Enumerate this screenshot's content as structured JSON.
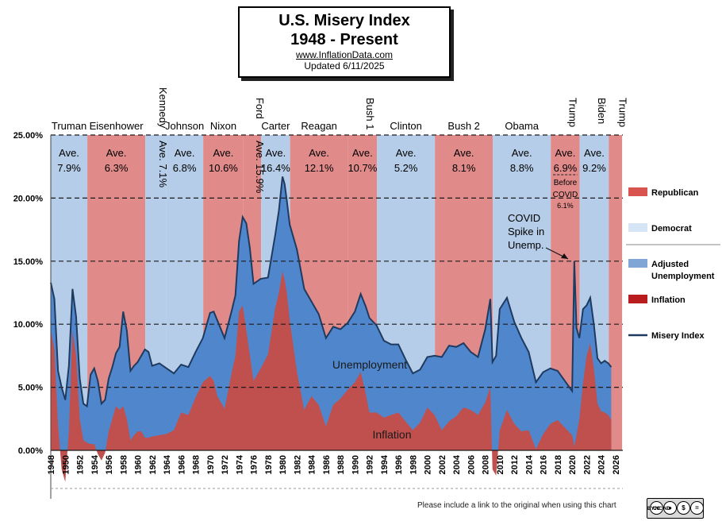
{
  "header": {
    "title": "U.S. Misery Index",
    "subtitle": "1948 - Present",
    "website": "www.InflationData.com",
    "updated": "Updated  6/11/2025"
  },
  "footer": {
    "note": "Please include a link to the original when using this chart"
  },
  "badge": {
    "icon": "creative-commons-by-nc-nd-icon",
    "text": "BY NC ND"
  },
  "colors": {
    "republican": "#e08a8a",
    "democrat": "#b5cde8",
    "unemployment": "#4f86cc",
    "inflation": "#c0504d",
    "misery_line": "#1f3a5f",
    "legend_republican": "#d9534f",
    "legend_democrat": "#d6e5f5",
    "legend_unemployment": "#7fa6d4",
    "legend_inflation": "#b91c1c"
  },
  "chart_data": {
    "type": "area",
    "x_range": [
      1948,
      2027
    ],
    "ylim": [
      -3,
      25
    ],
    "y_ticks": [
      0,
      5,
      10,
      15,
      20,
      25
    ],
    "y_tick_labels": [
      "0.00%",
      "5.00%",
      "10.00%",
      "15.00%",
      "20.00%",
      "25.00%"
    ],
    "x_ticks": [
      1948,
      1950,
      1952,
      1954,
      1956,
      1958,
      1960,
      1962,
      1964,
      1966,
      1968,
      1970,
      1972,
      1974,
      1976,
      1978,
      1980,
      1982,
      1984,
      1986,
      1988,
      1990,
      1992,
      1994,
      1996,
      1998,
      2000,
      2002,
      2004,
      2006,
      2008,
      2010,
      2012,
      2014,
      2016,
      2018,
      2020,
      2022,
      2024,
      2026
    ],
    "grid": "horizontal dashed",
    "legend": [
      {
        "label": "Republican",
        "kind": "swatch"
      },
      {
        "label": "Democrat",
        "kind": "swatch"
      },
      {
        "label": "Adjusted Unemployment",
        "kind": "swatch"
      },
      {
        "label": "Inflation",
        "kind": "swatch"
      },
      {
        "label": "Misery Index",
        "kind": "line"
      }
    ],
    "legend_position": "right",
    "area_labels": {
      "unemployment": "Unemployment",
      "inflation": "Inflation"
    },
    "covid_note": "COVID Spike in Unemp.",
    "presidents": [
      {
        "name": "Truman",
        "party": "D",
        "start": 1948.0,
        "end": 1953.05,
        "avg_label": "Ave.",
        "avg": "7.9%",
        "vertical": false
      },
      {
        "name": "Eisenhower",
        "party": "R",
        "start": 1953.05,
        "end": 1961.05,
        "avg_label": "Ave.",
        "avg": "6.3%",
        "vertical": false
      },
      {
        "name": "Kennedy",
        "party": "D",
        "start": 1961.05,
        "end": 1963.9,
        "avg_label": "Ave. 7.1%",
        "avg": "",
        "vertical": true
      },
      {
        "name": "Johnson",
        "party": "D",
        "start": 1963.9,
        "end": 1969.05,
        "avg_label": "Ave.",
        "avg": "6.8%",
        "vertical": false
      },
      {
        "name": "Nixon",
        "party": "R",
        "start": 1969.05,
        "end": 1974.6,
        "avg_label": "Ave.",
        "avg": "10.6%",
        "vertical": false
      },
      {
        "name": "Ford",
        "party": "R",
        "start": 1974.6,
        "end": 1977.05,
        "avg_label": "Ave. 15.9%",
        "avg": "",
        "vertical": true
      },
      {
        "name": "Carter",
        "party": "D",
        "start": 1977.05,
        "end": 1981.05,
        "avg_label": "Ave.",
        "avg": "16.4%",
        "vertical": false
      },
      {
        "name": "Reagan",
        "party": "R",
        "start": 1981.05,
        "end": 1989.05,
        "avg_label": "Ave.",
        "avg": "12.1%",
        "vertical": false
      },
      {
        "name": "Bush 1",
        "party": "R",
        "start": 1989.05,
        "end": 1993.05,
        "avg_label": "Ave.",
        "avg": "10.7%",
        "vertical": false
      },
      {
        "name": "Clinton",
        "party": "D",
        "start": 1993.05,
        "end": 2001.05,
        "avg_label": "Ave.",
        "avg": "5.2%",
        "vertical": false
      },
      {
        "name": "Bush 2",
        "party": "R",
        "start": 2001.05,
        "end": 2009.05,
        "avg_label": "Ave.",
        "avg": "8.1%",
        "vertical": false
      },
      {
        "name": "Obama",
        "party": "D",
        "start": 2009.05,
        "end": 2017.05,
        "avg_label": "Ave.",
        "avg": "8.8%",
        "vertical": false
      },
      {
        "name": "Trump",
        "party": "R",
        "start": 2017.05,
        "end": 2021.05,
        "avg_label": "Ave.",
        "avg": "6.9%",
        "vertical": false,
        "extra": [
          "Before",
          "COVID",
          "6.1%"
        ]
      },
      {
        "name": "Biden",
        "party": "D",
        "start": 2021.05,
        "end": 2025.05,
        "avg_label": "Ave.",
        "avg": "9.2%",
        "vertical": false
      },
      {
        "name": "Trump",
        "party": "R",
        "start": 2025.05,
        "end": 2026.9,
        "avg_label": "",
        "avg": "",
        "vertical": false
      }
    ],
    "x": [
      1948.0,
      1948.5,
      1949.0,
      1949.5,
      1950.0,
      1950.5,
      1951.0,
      1951.5,
      1952.0,
      1952.5,
      1953.0,
      1953.5,
      1954.0,
      1954.5,
      1955.0,
      1955.5,
      1956.0,
      1956.5,
      1957.0,
      1957.5,
      1958.0,
      1958.5,
      1959.0,
      1959.5,
      1960.0,
      1960.5,
      1961.0,
      1961.5,
      1962.0,
      1963.0,
      1964.0,
      1965.0,
      1966.0,
      1967.0,
      1968.0,
      1969.0,
      1970.0,
      1970.5,
      1971.0,
      1972.0,
      1973.0,
      1973.5,
      1974.0,
      1974.5,
      1975.0,
      1975.5,
      1976.0,
      1977.0,
      1978.0,
      1979.0,
      1979.5,
      1980.0,
      1980.3,
      1980.6,
      1981.0,
      1982.0,
      1983.0,
      1984.0,
      1985.0,
      1986.0,
      1987.0,
      1988.0,
      1989.0,
      1990.0,
      1990.8,
      1991.5,
      1992.0,
      1993.0,
      1994.0,
      1995.0,
      1996.0,
      1997.0,
      1998.0,
      1999.0,
      2000.0,
      2001.0,
      2002.0,
      2003.0,
      2004.0,
      2005.0,
      2006.0,
      2007.0,
      2008.0,
      2008.7,
      2009.0,
      2009.5,
      2010.0,
      2011.0,
      2012.0,
      2013.0,
      2014.0,
      2015.0,
      2016.0,
      2017.0,
      2018.0,
      2019.0,
      2020.0,
      2020.3,
      2020.6,
      2021.0,
      2021.5,
      2022.0,
      2022.5,
      2023.0,
      2023.5,
      2024.0,
      2024.5,
      2025.0,
      2025.4
    ],
    "inflation": [
      9.5,
      8.0,
      2.0,
      -1.5,
      -2.5,
      1.5,
      9.5,
      7.5,
      2.5,
      0.8,
      0.6,
      0.5,
      0.5,
      -0.3,
      -0.8,
      -0.2,
      1.5,
      2.5,
      3.5,
      3.2,
      3.5,
      2.5,
      0.8,
      1.2,
      1.5,
      1.5,
      1.0,
      1.0,
      1.1,
      1.2,
      1.3,
      1.6,
      3.0,
      2.8,
      4.2,
      5.4,
      5.9,
      5.5,
      4.3,
      3.3,
      6.2,
      7.5,
      11.0,
      11.5,
      9.5,
      7.5,
      5.5,
      6.5,
      7.6,
      11.3,
      12.5,
      14.2,
      13.5,
      12.5,
      10.3,
      6.2,
      3.2,
      4.3,
      3.6,
      1.9,
      3.6,
      4.1,
      4.8,
      5.4,
      6.2,
      4.5,
      3.0,
      3.0,
      2.6,
      2.8,
      3.0,
      2.3,
      1.6,
      2.2,
      3.4,
      2.8,
      1.6,
      2.3,
      2.7,
      3.4,
      3.2,
      2.8,
      3.8,
      5.0,
      -1.5,
      -2.0,
      1.6,
      3.2,
      2.1,
      1.5,
      1.6,
      0.1,
      1.3,
      2.1,
      2.4,
      1.8,
      1.2,
      0.3,
      1.2,
      2.5,
      5.3,
      7.5,
      8.5,
      6.5,
      3.7,
      3.1,
      3.0,
      2.8,
      2.4
    ],
    "unemployment": [
      3.8,
      4.0,
      4.3,
      6.5,
      6.5,
      5.2,
      3.3,
      3.1,
      3.2,
      2.9,
      2.9,
      5.5,
      6.0,
      5.8,
      4.5,
      4.2,
      4.2,
      4.1,
      4.2,
      5.0,
      7.5,
      7.0,
      5.5,
      5.5,
      5.5,
      6.0,
      7.0,
      6.8,
      5.6,
      5.7,
      5.2,
      4.5,
      3.8,
      3.8,
      3.6,
      3.5,
      5.0,
      5.5,
      6.0,
      5.6,
      4.9,
      4.8,
      5.6,
      7.0,
      8.5,
      8.5,
      7.7,
      7.1,
      6.1,
      5.8,
      6.5,
      7.5,
      7.6,
      7.3,
      7.6,
      9.7,
      9.6,
      7.5,
      7.2,
      7.0,
      6.2,
      5.5,
      5.3,
      5.6,
      6.2,
      6.9,
      7.5,
      6.9,
      6.1,
      5.6,
      5.4,
      4.9,
      4.5,
      4.2,
      4.0,
      4.7,
      5.8,
      6.0,
      5.5,
      5.1,
      4.6,
      4.6,
      5.8,
      7.0,
      8.5,
      9.5,
      9.6,
      8.9,
      8.1,
      7.4,
      6.2,
      5.3,
      4.9,
      4.4,
      3.9,
      3.7,
      3.5,
      14.7,
      8.5,
      6.4,
      5.9,
      4.0,
      3.6,
      3.5,
      3.6,
      3.8,
      4.1,
      4.1,
      4.2
    ]
  }
}
